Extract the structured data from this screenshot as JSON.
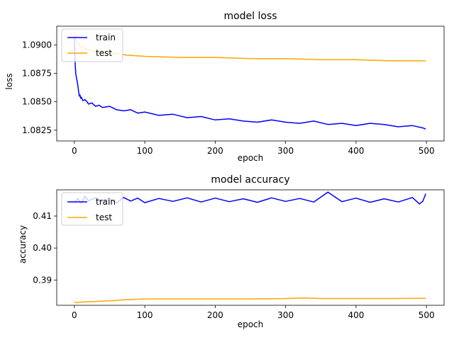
{
  "chart_data": [
    {
      "type": "line",
      "title": "model loss",
      "xlabel": "epoch",
      "ylabel": "loss",
      "xlim": [
        -25,
        525
      ],
      "ylim": [
        1.08155,
        1.09165
      ],
      "xticks": [
        0,
        100,
        200,
        300,
        400,
        500
      ],
      "xtick_labels": [
        "0",
        "100",
        "200",
        "300",
        "400",
        "500"
      ],
      "yticks": [
        1.0825,
        1.085,
        1.0875,
        1.09
      ],
      "ytick_labels": [
        "1.0825",
        "1.0850",
        "1.0875",
        "1.0900"
      ],
      "grid": false,
      "legend_position": "upper left",
      "series": [
        {
          "name": "train",
          "color": "#0000ff",
          "x": [
            0,
            1,
            2,
            3,
            4,
            5,
            6,
            7,
            8,
            9,
            10,
            12,
            15,
            18,
            20,
            25,
            30,
            35,
            40,
            50,
            60,
            70,
            80,
            90,
            100,
            120,
            140,
            160,
            180,
            200,
            220,
            240,
            260,
            280,
            300,
            320,
            340,
            360,
            380,
            400,
            420,
            440,
            460,
            480,
            495,
            499
          ],
          "y": [
            1.0906,
            1.0885,
            1.0875,
            1.0871,
            1.0868,
            1.0864,
            1.0859,
            1.0855,
            1.0856,
            1.0853,
            1.0854,
            1.0851,
            1.0852,
            1.085,
            1.0848,
            1.0849,
            1.0846,
            1.0847,
            1.0845,
            1.0846,
            1.0843,
            1.0842,
            1.0843,
            1.084,
            1.0841,
            1.0838,
            1.0839,
            1.0836,
            1.0837,
            1.0834,
            1.0835,
            1.0833,
            1.0832,
            1.0834,
            1.0832,
            1.0831,
            1.0833,
            1.083,
            1.0831,
            1.0829,
            1.0831,
            1.083,
            1.0828,
            1.0829,
            1.0827,
            1.0826
          ]
        },
        {
          "name": "test",
          "color": "#ffa500",
          "x": [
            0,
            2,
            5,
            10,
            20,
            30,
            50,
            75,
            100,
            150,
            200,
            250,
            300,
            350,
            400,
            450,
            480,
            499
          ],
          "y": [
            1.0911,
            1.0906,
            1.0901,
            1.0898,
            1.0896,
            1.0894,
            1.0893,
            1.0891,
            1.089,
            1.0889,
            1.0889,
            1.0888,
            1.0888,
            1.0887,
            1.0887,
            1.0886,
            1.0886,
            1.0886
          ]
        }
      ]
    },
    {
      "type": "line",
      "title": "model accuracy",
      "xlabel": "epoch",
      "ylabel": "accuracy",
      "xlim": [
        -25,
        525
      ],
      "ylim": [
        0.3821,
        0.4182
      ],
      "xticks": [
        0,
        100,
        200,
        300,
        400,
        500
      ],
      "xtick_labels": [
        "0",
        "100",
        "200",
        "300",
        "400",
        "500"
      ],
      "yticks": [
        0.39,
        0.4,
        0.41
      ],
      "ytick_labels": [
        "0.39",
        "0.40",
        "0.41"
      ],
      "grid": false,
      "legend_position": "upper left",
      "series": [
        {
          "name": "train",
          "color": "#0000ff",
          "x": [
            0,
            5,
            10,
            15,
            20,
            30,
            40,
            50,
            60,
            70,
            80,
            90,
            100,
            120,
            140,
            160,
            180,
            200,
            220,
            240,
            260,
            280,
            300,
            320,
            340,
            360,
            380,
            400,
            420,
            440,
            460,
            480,
            490,
            495,
            499
          ],
          "y": [
            0.4142,
            0.4155,
            0.414,
            0.4162,
            0.4148,
            0.4157,
            0.4145,
            0.4153,
            0.4141,
            0.4158,
            0.4147,
            0.4156,
            0.4142,
            0.4155,
            0.4146,
            0.4157,
            0.4144,
            0.4156,
            0.4145,
            0.4154,
            0.4143,
            0.4157,
            0.4146,
            0.4155,
            0.4144,
            0.4175,
            0.4145,
            0.4156,
            0.4143,
            0.4154,
            0.4144,
            0.4158,
            0.4138,
            0.4147,
            0.417
          ]
        },
        {
          "name": "test",
          "color": "#ffa500",
          "x": [
            0,
            5,
            10,
            20,
            30,
            40,
            50,
            60,
            70,
            80,
            90,
            100,
            150,
            200,
            250,
            300,
            326,
            350,
            400,
            450,
            499
          ],
          "y": [
            0.3831,
            0.3829,
            0.3831,
            0.3832,
            0.3833,
            0.3834,
            0.3835,
            0.3836,
            0.3838,
            0.3839,
            0.384,
            0.3841,
            0.3841,
            0.3841,
            0.3841,
            0.3842,
            0.3844,
            0.3842,
            0.3842,
            0.3842,
            0.3843
          ]
        }
      ]
    }
  ]
}
